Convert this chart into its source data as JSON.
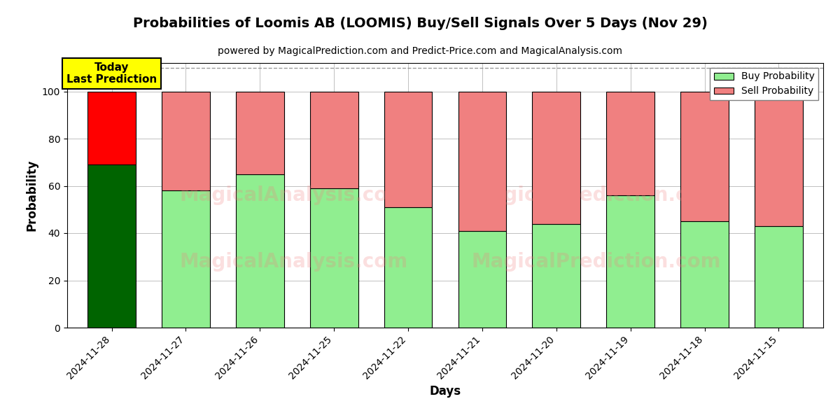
{
  "title": "Probabilities of Loomis AB (LOOMIS) Buy/Sell Signals Over 5 Days (Nov 29)",
  "subtitle": "powered by MagicalPrediction.com and Predict-Price.com and MagicalAnalysis.com",
  "xlabel": "Days",
  "ylabel": "Probability",
  "watermark_line1": "MagicalAnalysis.com",
  "watermark_line2": "MagicalPrediction.com",
  "dates": [
    "2024-11-28",
    "2024-11-27",
    "2024-11-26",
    "2024-11-25",
    "2024-11-22",
    "2024-11-21",
    "2024-11-20",
    "2024-11-19",
    "2024-11-18",
    "2024-11-15"
  ],
  "buy_values": [
    69,
    58,
    65,
    59,
    51,
    41,
    44,
    56,
    45,
    43
  ],
  "sell_values": [
    31,
    42,
    35,
    41,
    49,
    59,
    56,
    44,
    55,
    57
  ],
  "today_bar_buy_color": "#006400",
  "today_bar_sell_color": "#FF0000",
  "buy_color": "#90EE90",
  "sell_color": "#F08080",
  "legend_buy_color": "#90EE90",
  "legend_sell_color": "#F08080",
  "today_annotation_bg": "#FFFF00",
  "today_annotation_text": "Today\nLast Prediction",
  "ylim": [
    0,
    112
  ],
  "yticks": [
    0,
    20,
    40,
    60,
    80,
    100
  ],
  "dashed_line_y": 110,
  "bar_edge_color": "black",
  "bar_linewidth": 0.8,
  "grid_color": "gray",
  "grid_alpha": 0.5,
  "bg_color": "white"
}
